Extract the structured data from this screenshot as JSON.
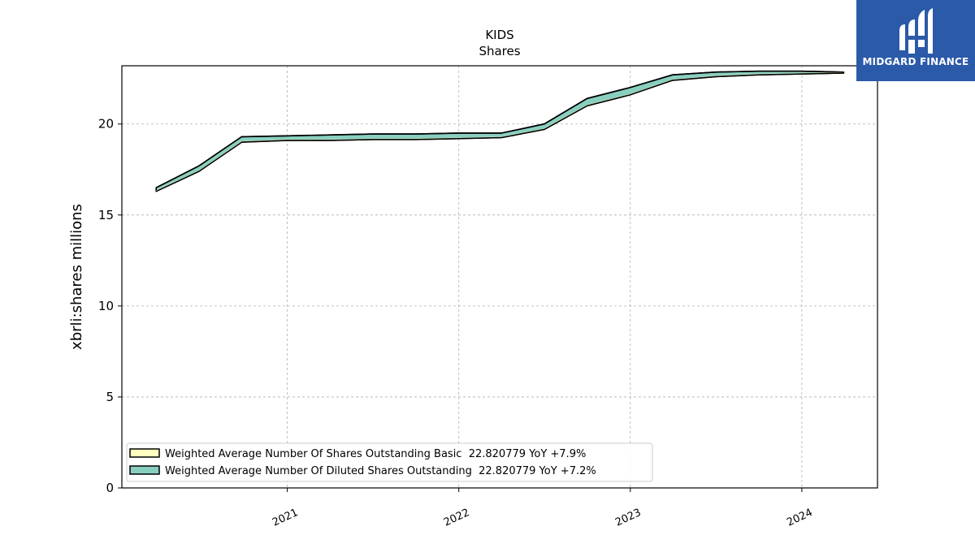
{
  "chart_data": {
    "type": "area",
    "title": "KIDS",
    "subtitle": "Shares",
    "ylabel": "xbrli:shares millions",
    "xlabel": "",
    "ylim": [
      0,
      23.2
    ],
    "yticks": [
      0,
      5,
      10,
      15,
      20
    ],
    "xticks": [
      "2021",
      "2022",
      "2023",
      "2024"
    ],
    "grid": true,
    "legend_position": "lower-left",
    "x": [
      "2020-03-28",
      "2020-06-27",
      "2020-09-26",
      "2021-01-02",
      "2021-04-03",
      "2021-07-03",
      "2021-10-02",
      "2022-01-01",
      "2022-04-02",
      "2022-07-02",
      "2022-10-01",
      "2022-12-31",
      "2023-04-01",
      "2023-07-01",
      "2023-09-30",
      "2024-01-01",
      "2024-03-30"
    ],
    "series": [
      {
        "name": "Weighted Average Number Of Shares Outstanding Basic  22.820779 YoY +7.9%",
        "color": "#ffffbf",
        "values": [
          16.3,
          17.4,
          19.0,
          19.1,
          19.1,
          19.15,
          19.15,
          19.2,
          19.25,
          19.7,
          21.0,
          21.6,
          22.4,
          22.6,
          22.7,
          22.75,
          22.8
        ]
      },
      {
        "name": "Weighted Average Number Of Diluted Shares Outstanding  22.820779 YoY +7.2%",
        "color": "#88cfc0",
        "values": [
          16.5,
          17.7,
          19.3,
          19.35,
          19.4,
          19.45,
          19.45,
          19.5,
          19.5,
          20.0,
          21.4,
          22.0,
          22.7,
          22.85,
          22.9,
          22.9,
          22.85
        ]
      }
    ]
  },
  "logo": {
    "text": "MIDGARD FINANCE",
    "background": "#2b5aa9"
  }
}
